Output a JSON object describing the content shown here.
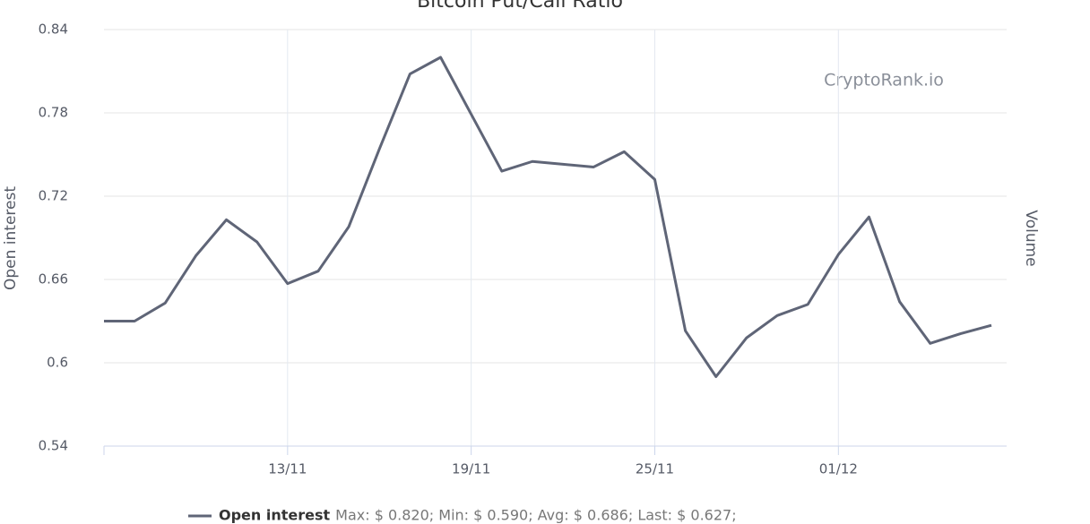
{
  "chart_data": {
    "type": "line",
    "title": "Bitcoin Put/Call Ratio",
    "y_axis_label": "Open interest",
    "y2_axis_label": "Volume",
    "watermark": "CryptoRank.io",
    "categories": [
      null,
      null,
      null,
      null,
      null,
      null,
      "13/11",
      null,
      null,
      null,
      null,
      null,
      "19/11",
      null,
      null,
      null,
      null,
      null,
      "25/11",
      null,
      null,
      null,
      null,
      null,
      "01/12",
      null,
      null,
      null,
      null,
      null
    ],
    "series": [
      {
        "name": "Open interest",
        "color": "#5f6577",
        "values": [
          0.63,
          0.63,
          0.643,
          0.677,
          0.703,
          0.687,
          0.657,
          0.666,
          0.698,
          0.754,
          0.808,
          0.82,
          0.779,
          0.738,
          0.745,
          0.743,
          0.741,
          0.752,
          0.732,
          0.623,
          0.59,
          0.618,
          0.634,
          0.642,
          0.678,
          0.705,
          0.644,
          0.614,
          0.621,
          0.627
        ]
      }
    ],
    "legend_stats": "Max: $ 0.820; Min: $ 0.590; Avg: $ 0.686; Last: $ 0.627;",
    "ylim": [
      0.54,
      0.84
    ],
    "yticks": [
      0.54,
      0.6,
      0.66,
      0.72,
      0.78,
      0.84
    ],
    "grid": true
  }
}
